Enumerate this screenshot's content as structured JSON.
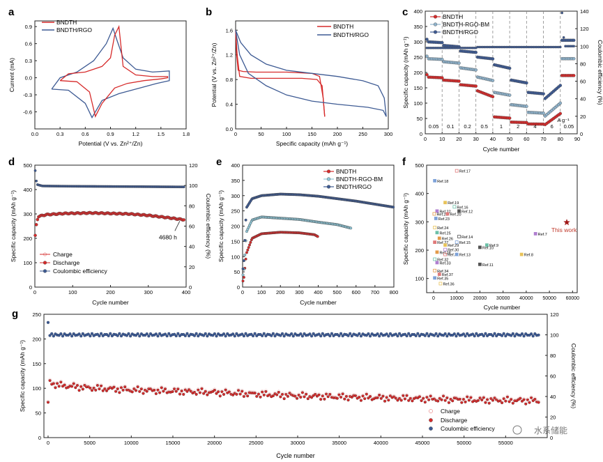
{
  "colors": {
    "red": "#d62a2a",
    "blue": "#3d5a93",
    "lightblue": "#8fb3cc",
    "cyan": "#8fc7d8",
    "axis": "#222222",
    "dash": "#888888",
    "star": "#a01818"
  },
  "watermark": "水系储能",
  "chart_data": [
    {
      "panel": "a",
      "type": "line",
      "xlabel": "Potential (V vs. Zn²⁺/Zn)",
      "ylabel": "Current (mA)",
      "xlim": [
        0.0,
        1.8
      ],
      "ylim": [
        -0.9,
        1.0
      ],
      "xticks": [
        "0.0",
        "0.3",
        "0.6",
        "0.9",
        "1.2",
        "1.5",
        "1.8"
      ],
      "yticks": [
        "0.9",
        "0.6",
        "0.3",
        "0.0",
        "-0.3",
        "-0.6"
      ],
      "legend": [
        "BNDTH",
        "BNDTH/RGO"
      ],
      "series": [
        {
          "name": "BNDTH",
          "x": [
            0.3,
            0.5,
            0.65,
            0.72,
            0.8,
            0.95,
            1.1,
            1.3,
            1.5,
            1.58,
            1.58,
            1.4,
            1.2,
            1.05,
            1.0,
            0.95,
            0.9,
            0.8,
            0.6,
            0.4,
            0.3
          ],
          "y": [
            -0.05,
            -0.07,
            -0.25,
            -0.68,
            -0.45,
            -0.18,
            -0.1,
            -0.05,
            -0.02,
            0.0,
            0.02,
            0.02,
            0.05,
            0.2,
            0.9,
            0.75,
            0.35,
            0.2,
            0.1,
            0.07,
            -0.05
          ]
        },
        {
          "name": "BNDTH/RGO",
          "x": [
            0.2,
            0.4,
            0.6,
            0.68,
            0.72,
            0.8,
            1.0,
            1.2,
            1.45,
            1.6,
            1.6,
            1.4,
            1.2,
            1.05,
            0.98,
            0.93,
            0.85,
            0.7,
            0.5,
            0.3,
            0.2
          ],
          "y": [
            -0.2,
            -0.22,
            -0.45,
            -0.7,
            -0.6,
            -0.4,
            -0.28,
            -0.2,
            -0.1,
            -0.05,
            0.12,
            0.1,
            0.15,
            0.35,
            0.65,
            0.87,
            0.6,
            0.3,
            0.1,
            0.0,
            -0.2
          ]
        }
      ]
    },
    {
      "panel": "b",
      "type": "line",
      "xlabel": "Specific capacity (mAh g⁻¹)",
      "ylabel": "Potential (V vs. Zn²⁺/Zn)",
      "xlim": [
        0,
        300
      ],
      "ylim": [
        0.0,
        1.75
      ],
      "xticks": [
        "0",
        "50",
        "100",
        "150",
        "200",
        "250",
        "300"
      ],
      "yticks": [
        "1.6",
        "1.2",
        "0.8",
        "0.4",
        "0.0"
      ],
      "legend": [
        "BNDTH",
        "BNDTH/RGO"
      ],
      "series": [
        {
          "name": "BNDTH discharge",
          "x": [
            0,
            2,
            5,
            15,
            40,
            100,
            150,
            165,
            172,
            175
          ],
          "y": [
            1.6,
            1.2,
            0.95,
            0.93,
            0.92,
            0.92,
            0.9,
            0.85,
            0.5,
            0.2
          ]
        },
        {
          "name": "BNDTH charge",
          "x": [
            175,
            170,
            160,
            130,
            80,
            30,
            8,
            3,
            0
          ],
          "y": [
            0.2,
            0.7,
            0.8,
            0.82,
            0.82,
            0.82,
            0.85,
            1.2,
            1.6
          ]
        },
        {
          "name": "BNDTH/RGO discharge",
          "x": [
            0,
            10,
            30,
            60,
            100,
            150,
            200,
            250,
            280,
            292,
            296
          ],
          "y": [
            1.6,
            1.4,
            1.2,
            1.05,
            0.95,
            0.9,
            0.85,
            0.78,
            0.7,
            0.5,
            0.2
          ]
        },
        {
          "name": "BNDTH/RGO charge",
          "x": [
            296,
            290,
            260,
            200,
            150,
            100,
            60,
            25,
            8,
            0
          ],
          "y": [
            0.2,
            0.3,
            0.35,
            0.4,
            0.45,
            0.55,
            0.7,
            0.9,
            1.2,
            1.6
          ]
        }
      ]
    },
    {
      "panel": "c",
      "type": "scatter",
      "xlabel": "Cycle number",
      "ylabel": "Specific capacity (mAh g⁻¹)",
      "y2label": "Coulombic efficiency (%)",
      "xlim": [
        0,
        90
      ],
      "ylim": [
        0,
        400
      ],
      "y2lim": [
        0,
        140
      ],
      "xticks": [
        "0",
        "10",
        "20",
        "30",
        "40",
        "50",
        "60",
        "70",
        "80",
        "90"
      ],
      "yticks": [
        "0",
        "50",
        "100",
        "150",
        "200",
        "250",
        "300",
        "350",
        "400"
      ],
      "y2ticks": [
        "0",
        "20",
        "40",
        "60",
        "80",
        "100",
        "120",
        "140"
      ],
      "legend": [
        "BNDTH",
        "BNDTH-RGO-BM",
        "BNDTH/RGO"
      ],
      "rate_labels": [
        "0.05",
        "0.1",
        "0.2",
        "0.5",
        "1",
        "2",
        "4",
        "6",
        "0.05"
      ],
      "current_unit": "A g⁻¹",
      "segments_x_start": [
        0,
        10,
        20,
        30,
        40,
        50,
        60,
        70,
        80
      ],
      "BNDTH_levels": [
        185,
        175,
        160,
        140,
        55,
        38,
        32,
        30,
        190
      ],
      "BNDTH_RGO_BM_levels": [
        245,
        235,
        215,
        185,
        135,
        95,
        70,
        58,
        245
      ],
      "BNDTH_RGO_levels": [
        300,
        288,
        270,
        250,
        225,
        175,
        135,
        115,
        305
      ],
      "ce_levels": [
        98,
        98,
        98,
        99,
        99,
        99,
        99,
        99,
        100
      ]
    },
    {
      "panel": "d",
      "type": "scatter",
      "xlabel": "Cycle number",
      "ylabel": "Specific capacity (mAh g⁻¹)",
      "y2label": "Coulombic efficiency (%)",
      "xlim": [
        0,
        400
      ],
      "ylim": [
        0,
        500
      ],
      "y2lim": [
        0,
        120
      ],
      "xticks": [
        "0",
        "100",
        "200",
        "300",
        "400"
      ],
      "yticks": [
        "0",
        "100",
        "200",
        "300",
        "400",
        "500"
      ],
      "y2ticks": [
        "0",
        "20",
        "40",
        "60",
        "80",
        "100",
        "120"
      ],
      "legend": [
        "Charge",
        "Discharge",
        "Coulombic efficiency"
      ],
      "annotation": "4680 h",
      "capacity_points": [
        [
          0,
          195
        ],
        [
          5,
          270
        ],
        [
          10,
          290
        ],
        [
          30,
          297
        ],
        [
          80,
          302
        ],
        [
          150,
          304
        ],
        [
          250,
          300
        ],
        [
          300,
          294
        ],
        [
          350,
          285
        ],
        [
          390,
          277
        ]
      ],
      "ce_points": [
        [
          0,
          118
        ],
        [
          5,
          101
        ],
        [
          20,
          99.5
        ],
        [
          100,
          99.2
        ],
        [
          200,
          99
        ],
        [
          300,
          98.8
        ],
        [
          390,
          98.6
        ]
      ]
    },
    {
      "panel": "e",
      "type": "scatter",
      "xlabel": "Cycle number",
      "ylabel": "Specific capacity (mAh g⁻¹)",
      "xlim": [
        0,
        800
      ],
      "ylim": [
        0,
        400
      ],
      "xticks": [
        "0",
        "100",
        "200",
        "300",
        "400",
        "500",
        "600",
        "700",
        "800"
      ],
      "yticks": [
        "0",
        "50",
        "100",
        "150",
        "200",
        "250",
        "300",
        "350",
        "400"
      ],
      "legend": [
        "BNDTH",
        "BNDTH-RGO-BM",
        "BNDTH/RGO"
      ],
      "series": [
        {
          "name": "BNDTH",
          "points": [
            [
              5,
              20
            ],
            [
              20,
              110
            ],
            [
              50,
              160
            ],
            [
              100,
              175
            ],
            [
              200,
              180
            ],
            [
              300,
              178
            ],
            [
              380,
              172
            ],
            [
              400,
              165
            ]
          ]
        },
        {
          "name": "BNDTH-RGO-BM",
          "points": [
            [
              5,
              40
            ],
            [
              20,
              180
            ],
            [
              50,
              220
            ],
            [
              100,
              230
            ],
            [
              200,
              226
            ],
            [
              300,
              222
            ],
            [
              400,
              213
            ],
            [
              500,
              205
            ],
            [
              575,
              193
            ]
          ]
        },
        {
          "name": "BNDTH/RGO",
          "points": [
            [
              5,
              60
            ],
            [
              20,
              260
            ],
            [
              50,
              290
            ],
            [
              100,
              300
            ],
            [
              200,
              305
            ],
            [
              300,
              303
            ],
            [
              400,
              298
            ],
            [
              500,
              290
            ],
            [
              600,
              282
            ],
            [
              700,
              272
            ],
            [
              800,
              262
            ]
          ]
        }
      ]
    },
    {
      "panel": "f",
      "type": "scatter",
      "xlabel": "Cycle number",
      "ylabel": "Specific capacity (mAh g⁻¹)",
      "xlim": [
        -3000,
        62000
      ],
      "ylim": [
        50,
        500
      ],
      "xticks": [
        "0",
        "10000",
        "20000",
        "30000",
        "40000",
        "50000",
        "60000"
      ],
      "yticks": [
        "100",
        "200",
        "300",
        "400",
        "500"
      ],
      "highlight": {
        "label": "This work",
        "x": 57500,
        "y": 298
      },
      "refs": [
        {
          "label": "Ref.17",
          "x": 10000,
          "y": 480
        },
        {
          "label": "Ref.18",
          "x": 500,
          "y": 445
        },
        {
          "label": "Ref.19",
          "x": 5000,
          "y": 368
        },
        {
          "label": "Ref.16",
          "x": 9000,
          "y": 353
        },
        {
          "label": "Ref.22",
          "x": 1500,
          "y": 338
        },
        {
          "label": "Ref.12",
          "x": 11000,
          "y": 338
        },
        {
          "label": "Ref.21",
          "x": 300,
          "y": 328
        },
        {
          "label": "Ref.20",
          "x": 6000,
          "y": 328
        },
        {
          "label": "Ref.23",
          "x": 1000,
          "y": 312
        },
        {
          "label": "Ref.24",
          "x": 500,
          "y": 280
        },
        {
          "label": "Ref.25",
          "x": 1500,
          "y": 262
        },
        {
          "label": "Ref.7",
          "x": 44000,
          "y": 258
        },
        {
          "label": "Ref.14",
          "x": 11000,
          "y": 248
        },
        {
          "label": "Ref.26",
          "x": 2500,
          "y": 242
        },
        {
          "label": "Ref.27",
          "x": 500,
          "y": 228
        },
        {
          "label": "Ref.15",
          "x": 10000,
          "y": 228
        },
        {
          "label": "Ref.29",
          "x": 5000,
          "y": 218
        },
        {
          "label": "Ref.9",
          "x": 23000,
          "y": 218
        },
        {
          "label": "Ref.30",
          "x": 5000,
          "y": 202
        },
        {
          "label": "Ref.10",
          "x": 20000,
          "y": 210
        },
        {
          "label": "Ref.28",
          "x": 1500,
          "y": 193
        },
        {
          "label": "Ref.31",
          "x": 5000,
          "y": 185
        },
        {
          "label": "Ref.13",
          "x": 10000,
          "y": 185
        },
        {
          "label": "Ref.8",
          "x": 38000,
          "y": 185
        },
        {
          "label": "Ref.32",
          "x": 500,
          "y": 168
        },
        {
          "label": "Ref.33",
          "x": 1500,
          "y": 156
        },
        {
          "label": "Ref.11",
          "x": 20000,
          "y": 150
        },
        {
          "label": "Ref.34",
          "x": 500,
          "y": 128
        },
        {
          "label": "Ref.37",
          "x": 2500,
          "y": 115
        },
        {
          "label": "Ref.35",
          "x": 500,
          "y": 102
        },
        {
          "label": "Ref.36",
          "x": 3000,
          "y": 82
        }
      ]
    },
    {
      "panel": "g",
      "type": "scatter",
      "xlabel": "Cycle number",
      "ylabel": "Specific capacity (mAh g⁻¹)",
      "y2label": "Coulombic efficiency (%)",
      "xlim": [
        -500,
        60000
      ],
      "ylim": [
        0,
        250
      ],
      "y2lim": [
        0,
        120
      ],
      "xticks": [
        "0",
        "5000",
        "10000",
        "15000",
        "20000",
        "25000",
        "30000",
        "35000",
        "40000",
        "45000",
        "50000",
        "55000"
      ],
      "yticks": [
        "0",
        "50",
        "100",
        "150",
        "200",
        "250"
      ],
      "y2ticks": [
        "0",
        "20",
        "40",
        "60",
        "80",
        "100",
        "120"
      ],
      "legend": [
        "Charge",
        "Discharge",
        "Coulombic efficiency"
      ],
      "capacity_trend": [
        [
          0,
          70
        ],
        [
          100,
          115
        ],
        [
          1000,
          108
        ],
        [
          5000,
          102
        ],
        [
          10000,
          98
        ],
        [
          20000,
          93
        ],
        [
          30000,
          86
        ],
        [
          40000,
          82
        ],
        [
          50000,
          78
        ],
        [
          59000,
          76
        ]
      ],
      "ce_level": 100
    }
  ]
}
